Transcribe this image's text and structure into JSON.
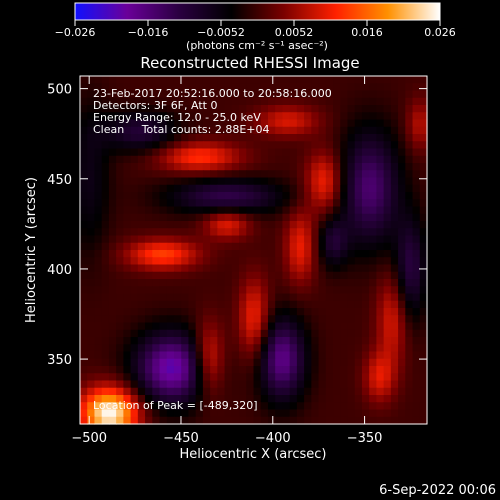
{
  "colorbar": {
    "min": -0.026,
    "max": 0.026,
    "tick_labels": [
      "−0.026",
      "−0.016",
      "−0.0052",
      "0.0052",
      "0.016",
      "0.026"
    ],
    "unit_label": "(photons cm⁻² s⁻¹ asec⁻²)",
    "colors": [
      "#1010ff",
      "#6a0099",
      "#2a0040",
      "#000000",
      "#7a0000",
      "#ff2000",
      "#ff9000",
      "#ffffff"
    ]
  },
  "annotation": {
    "lines": [
      "23-Feb-2017 20:52:16.000 to 20:58:16.000",
      "Detectors: 3F 6F, Att 0",
      "Energy Range: 12.0 - 25.0 keV",
      "Clean     Total counts: 2.88E+04"
    ],
    "peak_text": "Location of Peak = [-489,320]"
  },
  "footer": {
    "date": "6-Sep-2022 00:06"
  },
  "chart_data": {
    "type": "heatmap",
    "title": "Reconstructed RHESSI Image",
    "xlabel": "Heliocentric X (arcsec)",
    "ylabel": "Heliocentric Y (arcsec)",
    "xlim": [
      -505,
      -316
    ],
    "ylim": [
      314,
      507
    ],
    "xticks": [
      -500,
      -450,
      -400,
      -350
    ],
    "yticks": [
      350,
      400,
      450,
      500
    ],
    "xtick_labels": [
      "−500",
      "−450",
      "−400",
      "−350"
    ],
    "ytick_labels": [
      "350",
      "400",
      "450",
      "500"
    ],
    "grid": false,
    "peak": [
      -489,
      320
    ],
    "sources": [
      {
        "x": -489,
        "y": 320,
        "sx": 11,
        "sy": 10,
        "amp": 0.026
      },
      {
        "x": -440,
        "y": 462,
        "sx": 16,
        "sy": 6,
        "amp": 0.012
      },
      {
        "x": -392,
        "y": 482,
        "sx": 12,
        "sy": 6,
        "amp": 0.009
      },
      {
        "x": -372,
        "y": 448,
        "sx": 7,
        "sy": 12,
        "amp": 0.011
      },
      {
        "x": -385,
        "y": 412,
        "sx": 6,
        "sy": 14,
        "amp": 0.01
      },
      {
        "x": -410,
        "y": 372,
        "sx": 6,
        "sy": 16,
        "amp": 0.011
      },
      {
        "x": -435,
        "y": 350,
        "sx": 6,
        "sy": 14,
        "amp": 0.012
      },
      {
        "x": -460,
        "y": 408,
        "sx": 14,
        "sy": 6,
        "amp": 0.013
      },
      {
        "x": -425,
        "y": 425,
        "sx": 9,
        "sy": 6,
        "amp": 0.01
      },
      {
        "x": -335,
        "y": 372,
        "sx": 6,
        "sy": 18,
        "amp": 0.009
      },
      {
        "x": -342,
        "y": 340,
        "sx": 6,
        "sy": 10,
        "amp": 0.009
      },
      {
        "x": -320,
        "y": 480,
        "sx": 5,
        "sy": 10,
        "amp": 0.007
      },
      {
        "x": -455,
        "y": 345,
        "sx": 14,
        "sy": 14,
        "amp": -0.02
      },
      {
        "x": -395,
        "y": 350,
        "sx": 9,
        "sy": 16,
        "amp": -0.017
      },
      {
        "x": -425,
        "y": 440,
        "sx": 22,
        "sy": 7,
        "amp": -0.012
      },
      {
        "x": -347,
        "y": 445,
        "sx": 11,
        "sy": 22,
        "amp": -0.015
      },
      {
        "x": -367,
        "y": 415,
        "sx": 6,
        "sy": 10,
        "amp": -0.009
      },
      {
        "x": -472,
        "y": 476,
        "sx": 14,
        "sy": 8,
        "amp": -0.01
      },
      {
        "x": -325,
        "y": 400,
        "sx": 6,
        "sy": 20,
        "amp": -0.011
      },
      {
        "x": -500,
        "y": 450,
        "sx": 8,
        "sy": 30,
        "amp": -0.006
      }
    ]
  }
}
